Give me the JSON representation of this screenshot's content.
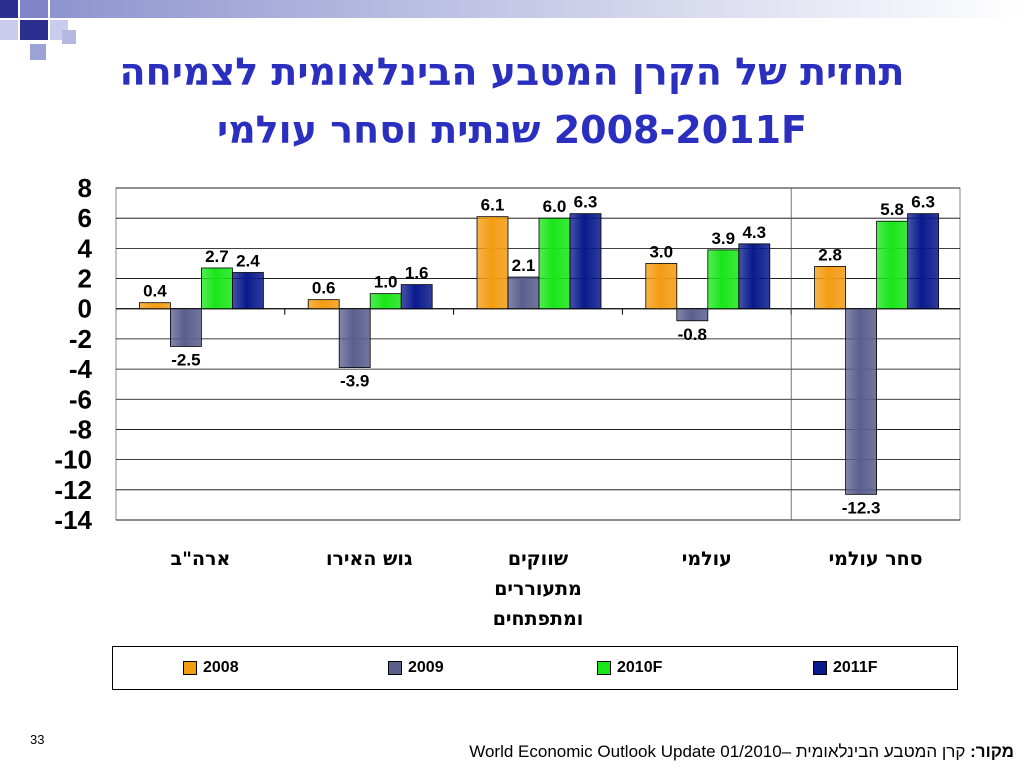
{
  "slide": {
    "title_line1": "תחזית של הקרן המטבע הבינלאומית לצמיחה",
    "title_line2": "2008-2011F  שנתית וסחר עולמי",
    "page_number": "33",
    "source_label": "מקור:",
    "source_text": " קרן המטבע הבינלאומית –World Economic Outlook Update 01/2010"
  },
  "colors": {
    "title": "#2b2fbf",
    "s2008": "#f39c12",
    "s2009": "#5a5f8e",
    "s2010F": "#19e619",
    "s2011F": "#0a1a8c"
  },
  "chart_data": {
    "type": "bar",
    "categories": [
      "ארה\"ב",
      "גוש האירו",
      "שווקים מתעוררים ומתפתחים",
      "עולמי",
      "סחר עולמי"
    ],
    "category_lines": [
      [
        "ארה\"ב"
      ],
      [
        "גוש האירו"
      ],
      [
        "שווקים",
        "מתעוררים",
        "ומתפתחים"
      ],
      [
        "עולמי"
      ],
      [
        "סחר עולמי"
      ]
    ],
    "series": [
      {
        "name": "2008",
        "values": [
          0.4,
          0.6,
          6.1,
          3.0,
          2.8
        ],
        "labels": [
          "0.4",
          "0.6",
          "6.1",
          "3.0",
          "2.8"
        ]
      },
      {
        "name": "2009",
        "values": [
          -2.5,
          -3.9,
          2.1,
          -0.8,
          -12.3
        ],
        "labels": [
          "-2.5",
          "-3.9",
          "2.1",
          "-0.8",
          "-12.3"
        ]
      },
      {
        "name": "2010F",
        "values": [
          2.7,
          1.0,
          6.0,
          3.9,
          5.8
        ],
        "labels": [
          "2.7",
          "1.0",
          "6.0",
          "3.9",
          "5.8"
        ]
      },
      {
        "name": "2011F",
        "values": [
          2.4,
          1.6,
          6.3,
          4.3,
          6.3
        ],
        "labels": [
          "2.4",
          "1.6",
          "6.3",
          "4.3",
          "6.3"
        ]
      }
    ],
    "ylim": [
      -14,
      8
    ],
    "yticks": [
      "8",
      "6",
      "4",
      "2",
      "0",
      "-2",
      "-4",
      "-6",
      "-8",
      "-10",
      "-12",
      "-14"
    ],
    "ytick_values": [
      8,
      6,
      4,
      2,
      0,
      -2,
      -4,
      -6,
      -8,
      -10,
      -12,
      -14
    ],
    "grid": true,
    "legend_position": "bottom"
  }
}
